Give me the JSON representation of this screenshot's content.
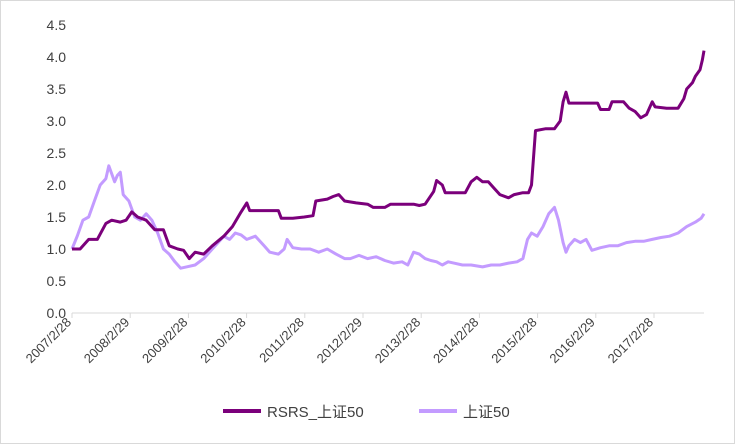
{
  "chart_data": {
    "type": "line",
    "title": "",
    "xlabel": "",
    "ylabel": "",
    "ylim": [
      0,
      4.5
    ],
    "y_ticks": [
      "0.0",
      "0.5",
      "1.0",
      "1.5",
      "2.0",
      "2.5",
      "3.0",
      "3.5",
      "4.0",
      "4.5"
    ],
    "x_ticks": [
      "2007/2/28",
      "2008/2/29",
      "2009/2/28",
      "2010/2/28",
      "2011/2/28",
      "2012/2/29",
      "2013/2/28",
      "2014/2/28",
      "2015/2/28",
      "2016/2/29",
      "2017/2/28"
    ],
    "x_range": [
      2007.16,
      2018.15
    ],
    "grid": false,
    "legend_position": "bottom",
    "series": [
      {
        "name": "RSRS_上证50",
        "color": "#7b007b",
        "points": [
          [
            2007.16,
            1.0
          ],
          [
            2007.3,
            1.0
          ],
          [
            2007.45,
            1.15
          ],
          [
            2007.6,
            1.15
          ],
          [
            2007.75,
            1.4
          ],
          [
            2007.85,
            1.45
          ],
          [
            2008.0,
            1.42
          ],
          [
            2008.1,
            1.45
          ],
          [
            2008.2,
            1.58
          ],
          [
            2008.3,
            1.5
          ],
          [
            2008.45,
            1.45
          ],
          [
            2008.6,
            1.3
          ],
          [
            2008.75,
            1.3
          ],
          [
            2008.85,
            1.05
          ],
          [
            2009.0,
            1.0
          ],
          [
            2009.1,
            0.98
          ],
          [
            2009.2,
            0.85
          ],
          [
            2009.3,
            0.95
          ],
          [
            2009.45,
            0.92
          ],
          [
            2009.6,
            1.05
          ],
          [
            2009.8,
            1.2
          ],
          [
            2009.95,
            1.35
          ],
          [
            2010.1,
            1.58
          ],
          [
            2010.2,
            1.72
          ],
          [
            2010.25,
            1.6
          ],
          [
            2010.4,
            1.6
          ],
          [
            2010.6,
            1.6
          ],
          [
            2010.75,
            1.6
          ],
          [
            2010.8,
            1.48
          ],
          [
            2011.0,
            1.48
          ],
          [
            2011.2,
            1.5
          ],
          [
            2011.35,
            1.52
          ],
          [
            2011.4,
            1.75
          ],
          [
            2011.6,
            1.78
          ],
          [
            2011.7,
            1.82
          ],
          [
            2011.8,
            1.85
          ],
          [
            2011.9,
            1.75
          ],
          [
            2012.1,
            1.72
          ],
          [
            2012.3,
            1.7
          ],
          [
            2012.4,
            1.65
          ],
          [
            2012.5,
            1.65
          ],
          [
            2012.6,
            1.65
          ],
          [
            2012.7,
            1.7
          ],
          [
            2012.9,
            1.7
          ],
          [
            2013.1,
            1.7
          ],
          [
            2013.2,
            1.68
          ],
          [
            2013.3,
            1.7
          ],
          [
            2013.45,
            1.9
          ],
          [
            2013.5,
            2.07
          ],
          [
            2013.6,
            2.0
          ],
          [
            2013.65,
            1.88
          ],
          [
            2013.8,
            1.88
          ],
          [
            2014.0,
            1.88
          ],
          [
            2014.1,
            2.05
          ],
          [
            2014.2,
            2.12
          ],
          [
            2014.3,
            2.05
          ],
          [
            2014.4,
            2.05
          ],
          [
            2014.5,
            1.95
          ],
          [
            2014.6,
            1.85
          ],
          [
            2014.75,
            1.8
          ],
          [
            2014.85,
            1.85
          ],
          [
            2015.0,
            1.88
          ],
          [
            2015.1,
            1.88
          ],
          [
            2015.15,
            2.0
          ],
          [
            2015.22,
            2.85
          ],
          [
            2015.4,
            2.88
          ],
          [
            2015.55,
            2.88
          ],
          [
            2015.65,
            3.0
          ],
          [
            2015.7,
            3.3
          ],
          [
            2015.75,
            3.45
          ],
          [
            2015.8,
            3.28
          ],
          [
            2016.0,
            3.28
          ],
          [
            2016.2,
            3.28
          ],
          [
            2016.3,
            3.28
          ],
          [
            2016.35,
            3.18
          ],
          [
            2016.5,
            3.18
          ],
          [
            2016.55,
            3.3
          ],
          [
            2016.75,
            3.3
          ],
          [
            2016.85,
            3.2
          ],
          [
            2016.95,
            3.15
          ],
          [
            2017.05,
            3.05
          ],
          [
            2017.15,
            3.1
          ],
          [
            2017.25,
            3.3
          ],
          [
            2017.3,
            3.22
          ],
          [
            2017.5,
            3.2
          ],
          [
            2017.7,
            3.2
          ],
          [
            2017.8,
            3.35
          ],
          [
            2017.85,
            3.5
          ],
          [
            2017.95,
            3.6
          ],
          [
            2018.0,
            3.7
          ],
          [
            2018.08,
            3.8
          ],
          [
            2018.12,
            3.95
          ],
          [
            2018.15,
            4.1
          ]
        ]
      },
      {
        "name": "上证50",
        "color": "#c39bff",
        "points": [
          [
            2007.16,
            1.0
          ],
          [
            2007.25,
            1.2
          ],
          [
            2007.35,
            1.45
          ],
          [
            2007.45,
            1.5
          ],
          [
            2007.55,
            1.75
          ],
          [
            2007.65,
            2.0
          ],
          [
            2007.75,
            2.1
          ],
          [
            2007.8,
            2.3
          ],
          [
            2007.9,
            2.05
          ],
          [
            2007.95,
            2.15
          ],
          [
            2008.0,
            2.2
          ],
          [
            2008.05,
            1.85
          ],
          [
            2008.15,
            1.75
          ],
          [
            2008.25,
            1.5
          ],
          [
            2008.35,
            1.45
          ],
          [
            2008.45,
            1.55
          ],
          [
            2008.55,
            1.45
          ],
          [
            2008.65,
            1.25
          ],
          [
            2008.75,
            1.0
          ],
          [
            2008.85,
            0.92
          ],
          [
            2008.95,
            0.8
          ],
          [
            2009.05,
            0.7
          ],
          [
            2009.15,
            0.72
          ],
          [
            2009.3,
            0.75
          ],
          [
            2009.45,
            0.85
          ],
          [
            2009.6,
            1.0
          ],
          [
            2009.7,
            1.1
          ],
          [
            2009.8,
            1.2
          ],
          [
            2009.9,
            1.15
          ],
          [
            2010.0,
            1.25
          ],
          [
            2010.1,
            1.22
          ],
          [
            2010.2,
            1.15
          ],
          [
            2010.35,
            1.2
          ],
          [
            2010.5,
            1.05
          ],
          [
            2010.6,
            0.95
          ],
          [
            2010.75,
            0.92
          ],
          [
            2010.85,
            1.0
          ],
          [
            2010.9,
            1.15
          ],
          [
            2011.0,
            1.02
          ],
          [
            2011.15,
            1.0
          ],
          [
            2011.3,
            1.0
          ],
          [
            2011.45,
            0.95
          ],
          [
            2011.6,
            1.0
          ],
          [
            2011.75,
            0.92
          ],
          [
            2011.9,
            0.85
          ],
          [
            2012.0,
            0.85
          ],
          [
            2012.15,
            0.9
          ],
          [
            2012.3,
            0.85
          ],
          [
            2012.45,
            0.88
          ],
          [
            2012.6,
            0.82
          ],
          [
            2012.75,
            0.78
          ],
          [
            2012.9,
            0.8
          ],
          [
            2013.0,
            0.75
          ],
          [
            2013.1,
            0.95
          ],
          [
            2013.2,
            0.92
          ],
          [
            2013.3,
            0.85
          ],
          [
            2013.4,
            0.82
          ],
          [
            2013.5,
            0.8
          ],
          [
            2013.6,
            0.75
          ],
          [
            2013.7,
            0.8
          ],
          [
            2013.8,
            0.78
          ],
          [
            2013.95,
            0.75
          ],
          [
            2014.1,
            0.75
          ],
          [
            2014.3,
            0.72
          ],
          [
            2014.45,
            0.75
          ],
          [
            2014.6,
            0.75
          ],
          [
            2014.75,
            0.78
          ],
          [
            2014.9,
            0.8
          ],
          [
            2015.0,
            0.85
          ],
          [
            2015.08,
            1.15
          ],
          [
            2015.15,
            1.25
          ],
          [
            2015.25,
            1.2
          ],
          [
            2015.35,
            1.35
          ],
          [
            2015.45,
            1.55
          ],
          [
            2015.55,
            1.65
          ],
          [
            2015.62,
            1.45
          ],
          [
            2015.7,
            1.1
          ],
          [
            2015.75,
            0.95
          ],
          [
            2015.8,
            1.05
          ],
          [
            2015.9,
            1.15
          ],
          [
            2016.0,
            1.1
          ],
          [
            2016.1,
            1.15
          ],
          [
            2016.2,
            0.98
          ],
          [
            2016.35,
            1.02
          ],
          [
            2016.5,
            1.05
          ],
          [
            2016.65,
            1.05
          ],
          [
            2016.8,
            1.1
          ],
          [
            2016.95,
            1.12
          ],
          [
            2017.1,
            1.12
          ],
          [
            2017.25,
            1.15
          ],
          [
            2017.4,
            1.18
          ],
          [
            2017.55,
            1.2
          ],
          [
            2017.7,
            1.25
          ],
          [
            2017.85,
            1.35
          ],
          [
            2018.0,
            1.42
          ],
          [
            2018.1,
            1.48
          ],
          [
            2018.15,
            1.55
          ]
        ]
      }
    ]
  }
}
